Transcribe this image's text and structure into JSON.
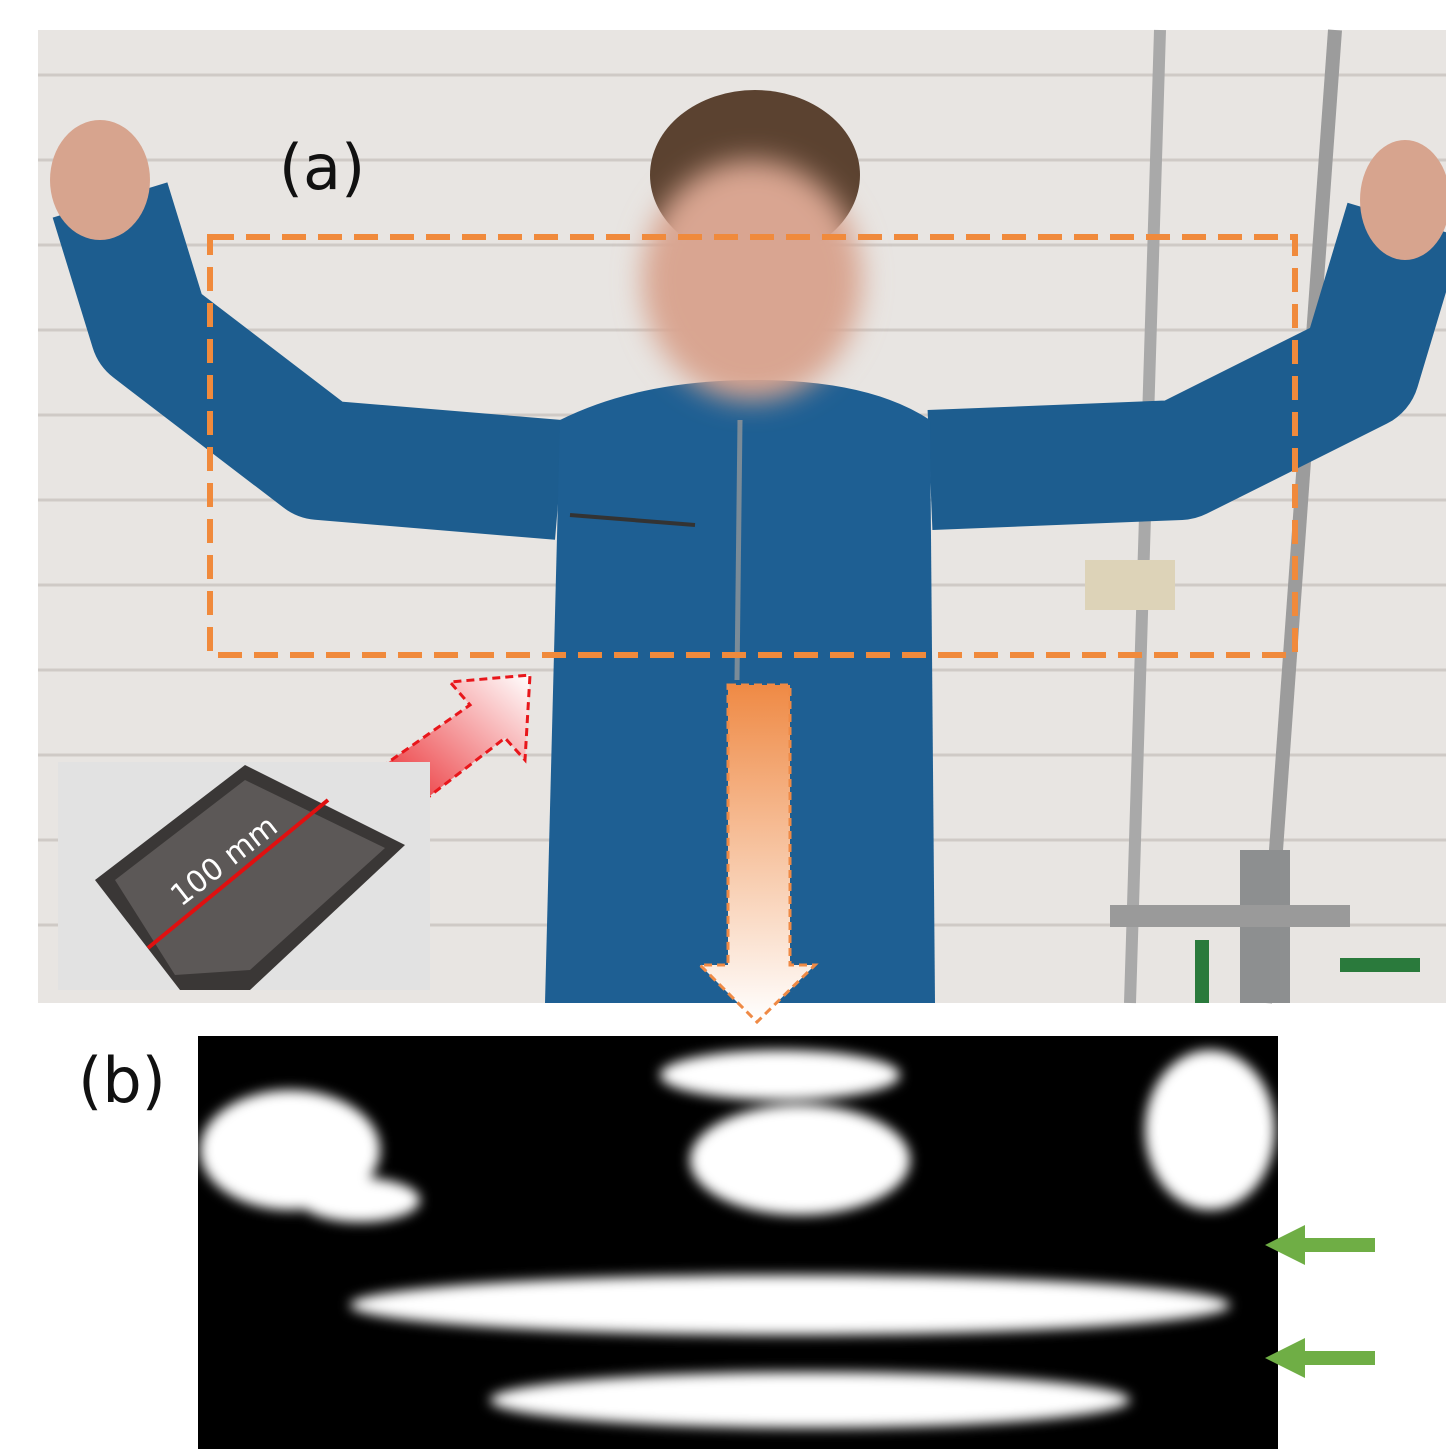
{
  "panels": [
    {
      "label": "(a)"
    },
    {
      "label": "(b)"
    }
  ],
  "inset": {
    "label": "100 mm"
  }
}
